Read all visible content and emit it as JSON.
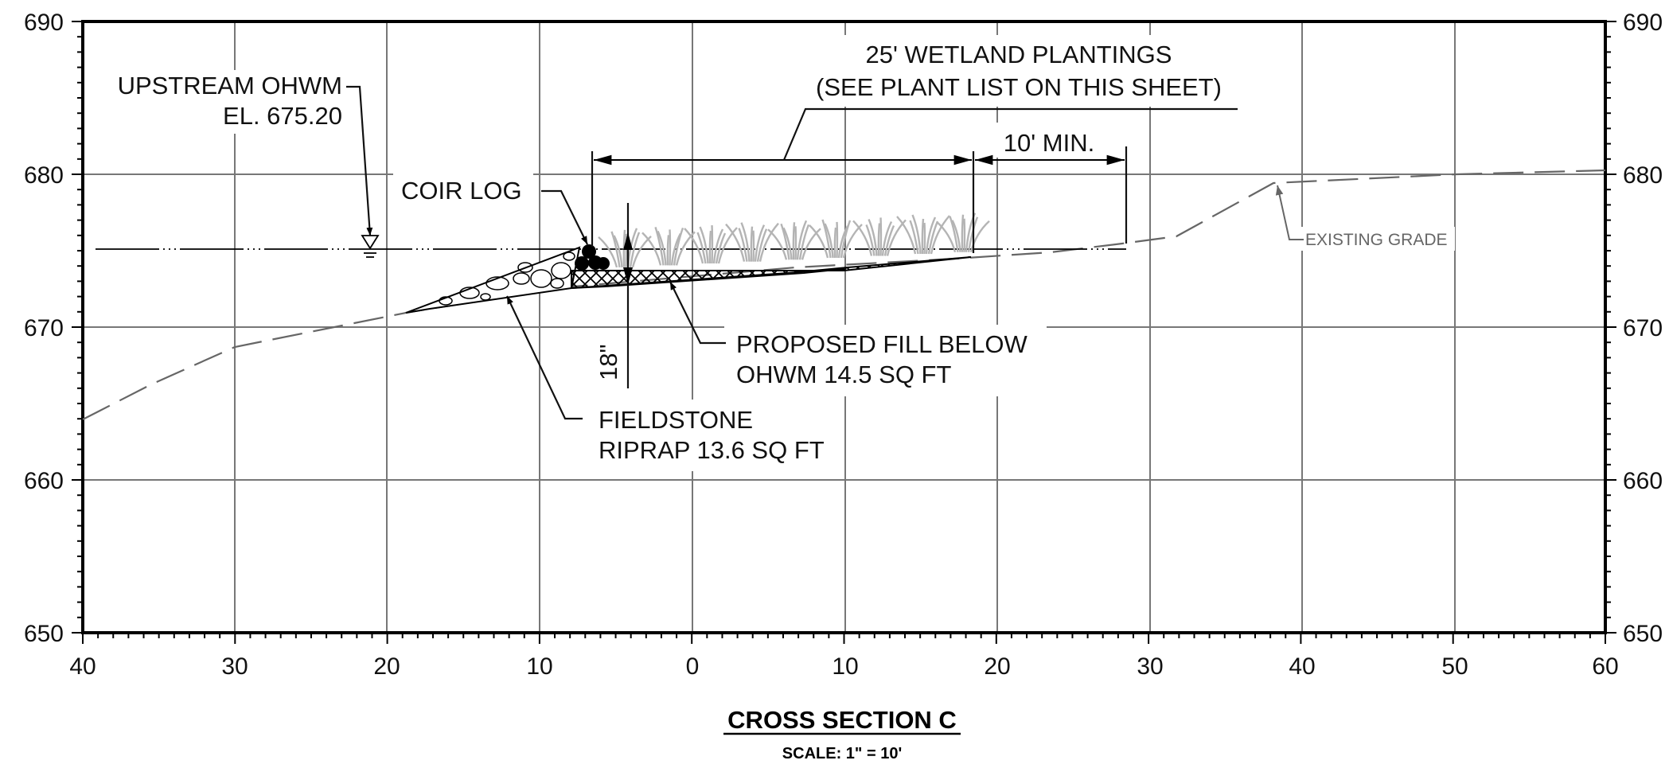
{
  "title": "CROSS SECTION C",
  "scale_note": "SCALE: 1\" = 10'",
  "axis": {
    "y_ticks_left": [
      "690",
      "680",
      "670",
      "660",
      "650"
    ],
    "y_ticks_right": [
      "690",
      "680",
      "670",
      "660",
      "650"
    ],
    "x_ticks": [
      "40",
      "30",
      "20",
      "10",
      "0",
      "10",
      "20",
      "30",
      "40",
      "50",
      "60"
    ]
  },
  "labels": {
    "ohwm_line1": "UPSTREAM OHWM",
    "ohwm_line2": "EL. 675.20",
    "coir_log": "COIR LOG",
    "plantings_line1": "25' WETLAND PLANTINGS",
    "plantings_line2": "(SEE PLANT LIST ON THIS SHEET)",
    "min_dim": "10' MIN.",
    "existing_grade": "EXISTING GRADE",
    "fill_line1": "PROPOSED FILL BELOW",
    "fill_line2": "OHWM 14.5 SQ FT",
    "riprap_line1": "FIELDSTONE",
    "riprap_line2": "RIPRAP 13.6 SQ FT",
    "depth_dim": "18\""
  },
  "colors": {
    "grid": "#777777",
    "existing_grade": "#666666",
    "plants": "#b4b4b4",
    "ink": "#111111"
  }
}
